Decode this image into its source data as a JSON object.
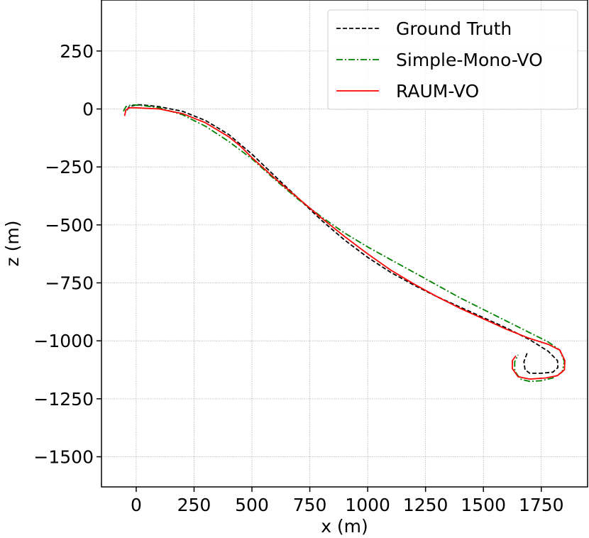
{
  "chart_data": {
    "type": "line",
    "xlabel": "x (m)",
    "ylabel": "z (m)",
    "xlim": [
      -150,
      1950
    ],
    "ylim": [
      -1630,
      470
    ],
    "xticks": [
      0,
      250,
      500,
      750,
      1000,
      1250,
      1500,
      1750
    ],
    "yticks": [
      250,
      0,
      -250,
      -500,
      -750,
      -1000,
      -1250,
      -1500
    ],
    "grid": true,
    "legend_position": "top-right",
    "series": [
      {
        "name": "Ground Truth",
        "color": "#000000",
        "style": "dashed",
        "points": [
          [
            -40,
            -5
          ],
          [
            -30,
            10
          ],
          [
            0,
            18
          ],
          [
            25,
            18
          ],
          [
            100,
            10
          ],
          [
            200,
            -10
          ],
          [
            300,
            -50
          ],
          [
            400,
            -110
          ],
          [
            500,
            -195
          ],
          [
            600,
            -290
          ],
          [
            700,
            -385
          ],
          [
            800,
            -480
          ],
          [
            900,
            -565
          ],
          [
            1000,
            -640
          ],
          [
            1100,
            -705
          ],
          [
            1200,
            -760
          ],
          [
            1300,
            -810
          ],
          [
            1400,
            -855
          ],
          [
            1500,
            -900
          ],
          [
            1600,
            -945
          ],
          [
            1700,
            -995
          ],
          [
            1780,
            -1045
          ],
          [
            1820,
            -1085
          ],
          [
            1822,
            -1115
          ],
          [
            1800,
            -1135
          ],
          [
            1750,
            -1140
          ],
          [
            1700,
            -1140
          ],
          [
            1680,
            -1125
          ],
          [
            1675,
            -1090
          ],
          [
            1690,
            -1050
          ]
        ]
      },
      {
        "name": "Simple-Mono-VO",
        "color": "#008000",
        "style": "dashdot",
        "points": [
          [
            -55,
            -10
          ],
          [
            -45,
            10
          ],
          [
            -20,
            18
          ],
          [
            25,
            15
          ],
          [
            100,
            5
          ],
          [
            200,
            -25
          ],
          [
            300,
            -75
          ],
          [
            400,
            -140
          ],
          [
            500,
            -215
          ],
          [
            600,
            -305
          ],
          [
            700,
            -390
          ],
          [
            800,
            -465
          ],
          [
            900,
            -535
          ],
          [
            1000,
            -595
          ],
          [
            1100,
            -650
          ],
          [
            1200,
            -705
          ],
          [
            1300,
            -760
          ],
          [
            1400,
            -815
          ],
          [
            1500,
            -865
          ],
          [
            1600,
            -915
          ],
          [
            1700,
            -965
          ],
          [
            1780,
            -1005
          ],
          [
            1830,
            -1040
          ],
          [
            1850,
            -1090
          ],
          [
            1840,
            -1135
          ],
          [
            1800,
            -1160
          ],
          [
            1750,
            -1172
          ],
          [
            1700,
            -1175
          ],
          [
            1660,
            -1165
          ],
          [
            1635,
            -1130
          ],
          [
            1635,
            -1090
          ],
          [
            1650,
            -1060
          ]
        ]
      },
      {
        "name": "RAUM-VO",
        "color": "#ff0000",
        "style": "solid",
        "points": [
          [
            -50,
            -30
          ],
          [
            -45,
            -5
          ],
          [
            -30,
            5
          ],
          [
            0,
            5
          ],
          [
            100,
            0
          ],
          [
            200,
            -20
          ],
          [
            300,
            -60
          ],
          [
            400,
            -120
          ],
          [
            450,
            -160
          ],
          [
            500,
            -210
          ],
          [
            600,
            -300
          ],
          [
            700,
            -385
          ],
          [
            800,
            -470
          ],
          [
            900,
            -550
          ],
          [
            1000,
            -625
          ],
          [
            1100,
            -695
          ],
          [
            1200,
            -755
          ],
          [
            1300,
            -810
          ],
          [
            1400,
            -860
          ],
          [
            1500,
            -905
          ],
          [
            1600,
            -950
          ],
          [
            1700,
            -990
          ],
          [
            1780,
            -1015
          ],
          [
            1830,
            -1040
          ],
          [
            1852,
            -1085
          ],
          [
            1850,
            -1125
          ],
          [
            1820,
            -1150
          ],
          [
            1770,
            -1160
          ],
          [
            1700,
            -1165
          ],
          [
            1650,
            -1155
          ],
          [
            1625,
            -1120
          ],
          [
            1625,
            -1085
          ],
          [
            1640,
            -1065
          ]
        ]
      }
    ]
  }
}
